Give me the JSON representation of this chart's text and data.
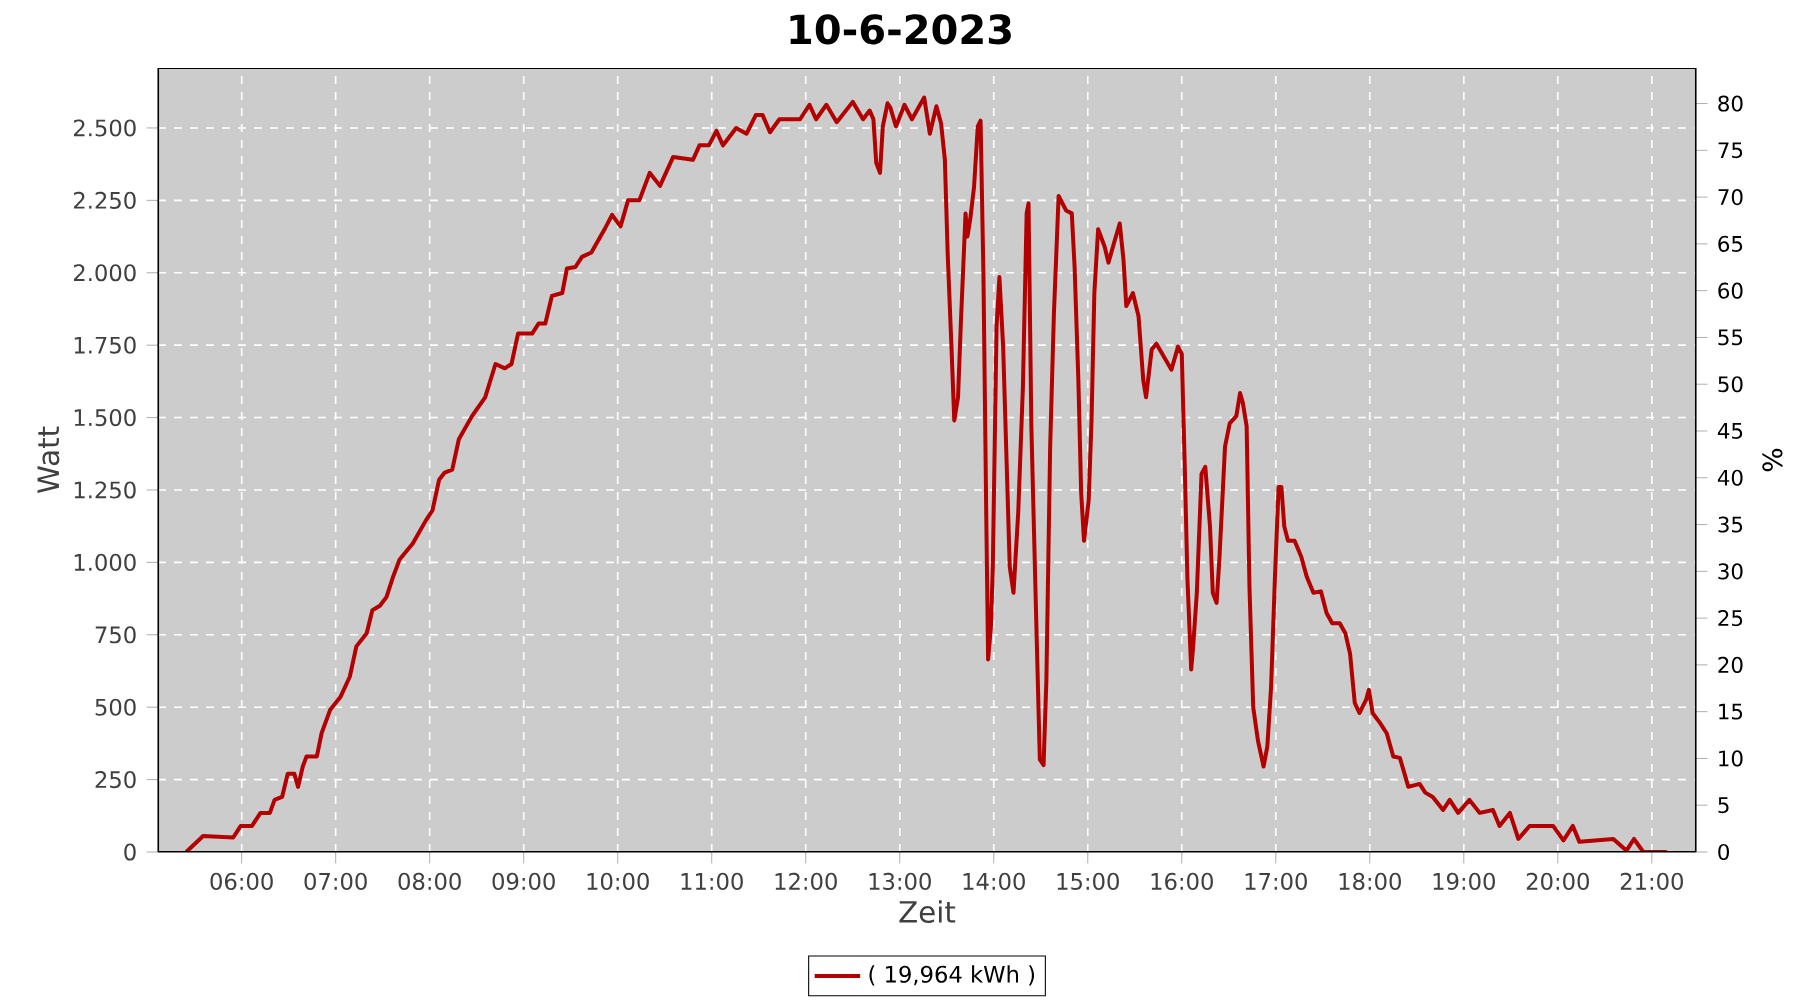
{
  "chart_data": {
    "type": "line",
    "title": "10-6-2023",
    "xlabel": "Zeit",
    "ylabel": "Watt",
    "y2label": "%",
    "x": [
      5.41,
      5.59,
      5.91,
      5.99,
      6.11,
      6.2,
      6.3,
      6.35,
      6.43,
      6.49,
      6.56,
      6.6,
      6.65,
      6.69,
      6.8,
      6.85,
      6.94,
      7.05,
      7.15,
      7.22,
      7.33,
      7.39,
      7.47,
      7.54,
      7.61,
      7.68,
      7.82,
      7.96,
      8.03,
      8.1,
      8.16,
      8.24,
      8.31,
      8.45,
      8.59,
      8.7,
      8.8,
      8.87,
      8.94,
      9.09,
      9.16,
      9.23,
      9.3,
      9.41,
      9.46,
      9.55,
      9.62,
      9.72,
      9.86,
      9.94,
      10.03,
      10.11,
      10.23,
      10.34,
      10.45,
      10.59,
      10.8,
      10.87,
      10.97,
      11.05,
      11.12,
      11.26,
      11.37,
      11.47,
      11.54,
      11.62,
      11.72,
      11.94,
      12.04,
      12.11,
      12.22,
      12.33,
      12.5,
      12.61,
      12.68,
      12.72,
      12.75,
      12.79,
      12.82,
      12.87,
      12.9,
      12.96,
      13.05,
      13.13,
      13.26,
      13.32,
      13.39,
      13.44,
      13.48,
      13.51,
      13.55,
      13.58,
      13.62,
      13.65,
      13.7,
      13.72,
      13.75,
      13.79,
      13.83,
      13.86,
      13.89,
      13.92,
      13.94,
      13.97,
      13.99,
      14.03,
      14.06,
      14.1,
      14.17,
      14.21,
      14.26,
      14.31,
      14.35,
      14.37,
      14.4,
      14.45,
      14.49,
      14.53,
      14.56,
      14.6,
      14.64,
      14.69,
      14.77,
      14.83,
      14.86,
      14.9,
      14.93,
      14.96,
      15.01,
      15.04,
      15.07,
      15.11,
      15.18,
      15.22,
      15.29,
      15.34,
      15.38,
      15.41,
      15.48,
      15.54,
      15.59,
      15.62,
      15.68,
      15.73,
      15.89,
      15.96,
      16.0,
      16.03,
      16.06,
      16.1,
      16.12,
      16.16,
      16.21,
      16.25,
      16.3,
      16.33,
      16.37,
      16.4,
      16.46,
      16.51,
      16.58,
      16.62,
      16.65,
      16.69,
      16.72,
      16.76,
      16.81,
      16.87,
      16.91,
      16.95,
      16.99,
      17.03,
      17.06,
      17.09,
      17.13,
      17.2,
      17.27,
      17.33,
      17.4,
      17.48,
      17.54,
      17.6,
      17.68,
      17.74,
      17.79,
      17.84,
      17.89,
      17.96,
      17.99,
      18.03,
      18.11,
      18.18,
      18.25,
      18.32,
      18.41,
      18.53,
      18.59,
      18.67,
      18.78,
      18.85,
      18.94,
      19.06,
      19.17,
      19.31,
      19.38,
      19.49,
      19.58,
      19.7,
      19.95,
      20.06,
      20.16,
      20.23,
      20.59,
      20.73,
      20.81,
      20.91,
      21.16
    ],
    "series": [
      {
        "name": "( 19,964 kWh )",
        "color": "#b30000",
        "values": [
          0,
          55,
          50,
          90,
          90,
          135,
          135,
          180,
          190,
          270,
          270,
          225,
          295,
          330,
          330,
          410,
          490,
          535,
          605,
          710,
          755,
          835,
          850,
          880,
          950,
          1010,
          1065,
          1145,
          1180,
          1285,
          1310,
          1320,
          1425,
          1505,
          1570,
          1685,
          1670,
          1685,
          1790,
          1790,
          1825,
          1825,
          1920,
          1930,
          2015,
          2020,
          2055,
          2070,
          2150,
          2200,
          2160,
          2250,
          2250,
          2345,
          2300,
          2400,
          2390,
          2440,
          2440,
          2490,
          2440,
          2500,
          2480,
          2545,
          2545,
          2485,
          2530,
          2530,
          2580,
          2530,
          2580,
          2520,
          2590,
          2530,
          2560,
          2530,
          2380,
          2345,
          2505,
          2585,
          2570,
          2505,
          2580,
          2530,
          2605,
          2480,
          2575,
          2515,
          2390,
          2065,
          1745,
          1490,
          1570,
          1825,
          2205,
          2125,
          2185,
          2295,
          2505,
          2525,
          2000,
          1170,
          665,
          780,
          985,
          1815,
          1985,
          1745,
          985,
          895,
          1170,
          1605,
          2205,
          2240,
          1470,
          825,
          320,
          300,
          595,
          1400,
          1860,
          2265,
          2215,
          2205,
          2020,
          1630,
          1240,
          1075,
          1215,
          1490,
          1930,
          2150,
          2090,
          2035,
          2115,
          2170,
          2045,
          1885,
          1930,
          1850,
          1630,
          1570,
          1735,
          1755,
          1665,
          1745,
          1720,
          1355,
          945,
          630,
          705,
          895,
          1305,
          1330,
          1125,
          895,
          860,
          1010,
          1400,
          1480,
          1505,
          1585,
          1550,
          1470,
          915,
          500,
          385,
          295,
          365,
          570,
          940,
          1260,
          1260,
          1125,
          1075,
          1075,
          1020,
          950,
          895,
          900,
          825,
          790,
          790,
          755,
          685,
          515,
          480,
          525,
          560,
          480,
          445,
          410,
          330,
          325,
          225,
          235,
          205,
          190,
          145,
          180,
          135,
          180,
          135,
          145,
          90,
          135,
          45,
          90,
          90,
          40,
          90,
          35,
          45,
          5,
          45,
          0,
          0
        ]
      }
    ],
    "xlim": [
      5.11,
      21.47
    ],
    "xticks": [
      {
        "value": 6,
        "label": "06:00"
      },
      {
        "value": 7,
        "label": "07:00"
      },
      {
        "value": 8,
        "label": "08:00"
      },
      {
        "value": 9,
        "label": "09:00"
      },
      {
        "value": 10,
        "label": "10:00"
      },
      {
        "value": 11,
        "label": "11:00"
      },
      {
        "value": 12,
        "label": "12:00"
      },
      {
        "value": 13,
        "label": "13:00"
      },
      {
        "value": 14,
        "label": "14:00"
      },
      {
        "value": 15,
        "label": "15:00"
      },
      {
        "value": 16,
        "label": "16:00"
      },
      {
        "value": 17,
        "label": "17:00"
      },
      {
        "value": 18,
        "label": "18:00"
      },
      {
        "value": 19,
        "label": "19:00"
      },
      {
        "value": 20,
        "label": "20:00"
      },
      {
        "value": 21,
        "label": "21:00"
      }
    ],
    "ylim": [
      0,
      2707
    ],
    "yticks": [
      0,
      250,
      500,
      750,
      {
        "value": 1000,
        "label": "1.000"
      },
      {
        "value": 1250,
        "label": "1.250"
      },
      {
        "value": 1500,
        "label": "1.500"
      },
      {
        "value": 1750,
        "label": "1.750"
      },
      {
        "value": 2000,
        "label": "2.000"
      },
      {
        "value": 2250,
        "label": "2.250"
      },
      {
        "value": 2500,
        "label": "2.500"
      }
    ],
    "y2lim": [
      0,
      83.8
    ],
    "y2ticks": [
      0,
      5,
      10,
      15,
      20,
      25,
      30,
      35,
      40,
      45,
      50,
      55,
      60,
      65,
      70,
      75,
      80
    ],
    "grid": true,
    "legend": "bottom",
    "marker": "none",
    "line_style": "solid"
  }
}
